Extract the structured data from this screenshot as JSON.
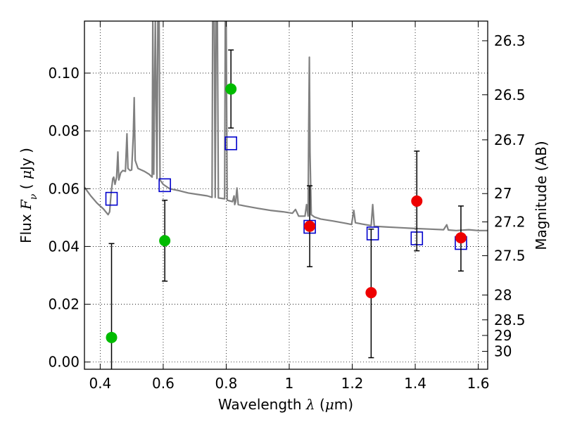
{
  "chart_data": {
    "type": "scatter",
    "xlabel": "Wavelength  λ (μm)",
    "ylabel": "Flux  F_ν  ( μJy )",
    "y2label": "Magnitude (AB)",
    "xlim": [
      0.35,
      1.63
    ],
    "ylim": [
      -0.0025,
      0.118
    ],
    "grid": true,
    "x_ticks": [
      0.4,
      0.6,
      0.8,
      1.0,
      1.2,
      1.4,
      1.6
    ],
    "x_tick_labels": [
      "0.4",
      "0.6",
      "0.8",
      "1",
      "1.2",
      "1.4",
      "1.6"
    ],
    "y_ticks": [
      0.0,
      0.02,
      0.04,
      0.06,
      0.08,
      0.1
    ],
    "y_tick_labels": [
      "0.00",
      "0.02",
      "0.04",
      "0.06",
      "0.08",
      "0.10"
    ],
    "y2_ticks": [
      {
        "label": "26.3",
        "flux": 0.1112
      },
      {
        "label": "26.5",
        "flux": 0.0925
      },
      {
        "label": "26.7",
        "flux": 0.0769
      },
      {
        "label": "27",
        "flux": 0.0583
      },
      {
        "label": "27.2",
        "flux": 0.0485
      },
      {
        "label": "27.5",
        "flux": 0.0368
      },
      {
        "label": "28",
        "flux": 0.0232
      },
      {
        "label": "28.5",
        "flux": 0.0146
      },
      {
        "label": "29",
        "flux": 0.0092
      },
      {
        "label": "30",
        "flux": 0.0037
      }
    ],
    "series": [
      {
        "kind": "model",
        "color": "#808080",
        "points": [
          [
            0.35,
            0.0605
          ],
          [
            0.37,
            0.0575
          ],
          [
            0.39,
            0.055
          ],
          [
            0.41,
            0.053
          ],
          [
            0.425,
            0.051
          ],
          [
            0.43,
            0.052
          ],
          [
            0.435,
            0.059
          ],
          [
            0.44,
            0.0635
          ],
          [
            0.443,
            0.064
          ],
          [
            0.447,
            0.0615
          ],
          [
            0.452,
            0.064
          ],
          [
            0.456,
            0.0727
          ],
          [
            0.459,
            0.063
          ],
          [
            0.465,
            0.0655
          ],
          [
            0.472,
            0.0663
          ],
          [
            0.48,
            0.066
          ],
          [
            0.485,
            0.079
          ],
          [
            0.488,
            0.067
          ],
          [
            0.495,
            0.0663
          ],
          [
            0.5,
            0.0665
          ],
          [
            0.505,
            0.0785
          ],
          [
            0.508,
            0.0915
          ],
          [
            0.511,
            0.0698
          ],
          [
            0.52,
            0.067
          ],
          [
            0.54,
            0.066
          ],
          [
            0.555,
            0.065
          ],
          [
            0.565,
            0.064
          ],
          [
            0.567,
            0.118
          ],
          [
            0.57,
            0.065
          ],
          [
            0.575,
            0.118
          ],
          [
            0.58,
            0.0635
          ],
          [
            0.583,
            0.118
          ],
          [
            0.587,
            0.118
          ],
          [
            0.59,
            0.063
          ],
          [
            0.6,
            0.0615
          ],
          [
            0.62,
            0.06
          ],
          [
            0.65,
            0.0593
          ],
          [
            0.68,
            0.0585
          ],
          [
            0.71,
            0.058
          ],
          [
            0.74,
            0.0575
          ],
          [
            0.755,
            0.057
          ],
          [
            0.757,
            0.118
          ],
          [
            0.762,
            0.118
          ],
          [
            0.765,
            0.057
          ],
          [
            0.768,
            0.118
          ],
          [
            0.772,
            0.118
          ],
          [
            0.775,
            0.0568
          ],
          [
            0.795,
            0.0565
          ],
          [
            0.797,
            0.118
          ],
          [
            0.8,
            0.118
          ],
          [
            0.803,
            0.056
          ],
          [
            0.81,
            0.0558
          ],
          [
            0.82,
            0.0555
          ],
          [
            0.825,
            0.0575
          ],
          [
            0.827,
            0.0545
          ],
          [
            0.83,
            0.0555
          ],
          [
            0.834,
            0.0602
          ],
          [
            0.838,
            0.0545
          ],
          [
            0.86,
            0.054
          ],
          [
            0.9,
            0.0532
          ],
          [
            0.94,
            0.0525
          ],
          [
            0.98,
            0.052
          ],
          [
            1.01,
            0.0515
          ],
          [
            1.02,
            0.0528
          ],
          [
            1.03,
            0.0505
          ],
          [
            1.05,
            0.0505
          ],
          [
            1.055,
            0.0545
          ],
          [
            1.06,
            0.0505
          ],
          [
            1.062,
            0.0822
          ],
          [
            1.064,
            0.1055
          ],
          [
            1.066,
            0.0725
          ],
          [
            1.07,
            0.051
          ],
          [
            1.08,
            0.0502
          ],
          [
            1.1,
            0.0495
          ],
          [
            1.14,
            0.0488
          ],
          [
            1.18,
            0.048
          ],
          [
            1.198,
            0.0476
          ],
          [
            1.205,
            0.0525
          ],
          [
            1.21,
            0.0482
          ],
          [
            1.23,
            0.0478
          ],
          [
            1.26,
            0.0472
          ],
          [
            1.265,
            0.0545
          ],
          [
            1.27,
            0.047
          ],
          [
            1.3,
            0.0468
          ],
          [
            1.35,
            0.0465
          ],
          [
            1.4,
            0.0462
          ],
          [
            1.45,
            0.046
          ],
          [
            1.49,
            0.0458
          ],
          [
            1.5,
            0.0475
          ],
          [
            1.505,
            0.0457
          ],
          [
            1.53,
            0.0455
          ],
          [
            1.57,
            0.0458
          ],
          [
            1.6,
            0.0455
          ],
          [
            1.63,
            0.0455
          ]
        ]
      },
      {
        "kind": "model-photometry",
        "marker": "open-square",
        "color": "#0000cc",
        "points": [
          [
            0.436,
            0.0565
          ],
          [
            0.605,
            0.0612
          ],
          [
            0.815,
            0.0757
          ],
          [
            1.065,
            0.0468
          ],
          [
            1.265,
            0.0445
          ],
          [
            1.405,
            0.0428
          ],
          [
            1.545,
            0.0412
          ]
        ]
      },
      {
        "kind": "observed-optical",
        "marker": "filled-circle",
        "color": "#00bb00",
        "points": [
          {
            "x": 0.436,
            "y": 0.0085,
            "yerr_low": null,
            "yerr_high": 0.041
          },
          {
            "x": 0.605,
            "y": 0.042,
            "yerr_low": 0.028,
            "yerr_high": 0.056
          },
          {
            "x": 0.815,
            "y": 0.0945,
            "yerr_low": 0.081,
            "yerr_high": 0.108
          }
        ]
      },
      {
        "kind": "observed-nir",
        "marker": "filled-circle",
        "color": "#ee0000",
        "points": [
          {
            "x": 1.065,
            "y": 0.047,
            "yerr_low": 0.033,
            "yerr_high": 0.061
          },
          {
            "x": 1.26,
            "y": 0.024,
            "yerr_low": 0.0015,
            "yerr_high": 0.046
          },
          {
            "x": 1.405,
            "y": 0.0557,
            "yerr_low": 0.0385,
            "yerr_high": 0.073
          },
          {
            "x": 1.545,
            "y": 0.043,
            "yerr_low": 0.0315,
            "yerr_high": 0.054
          }
        ]
      }
    ]
  }
}
